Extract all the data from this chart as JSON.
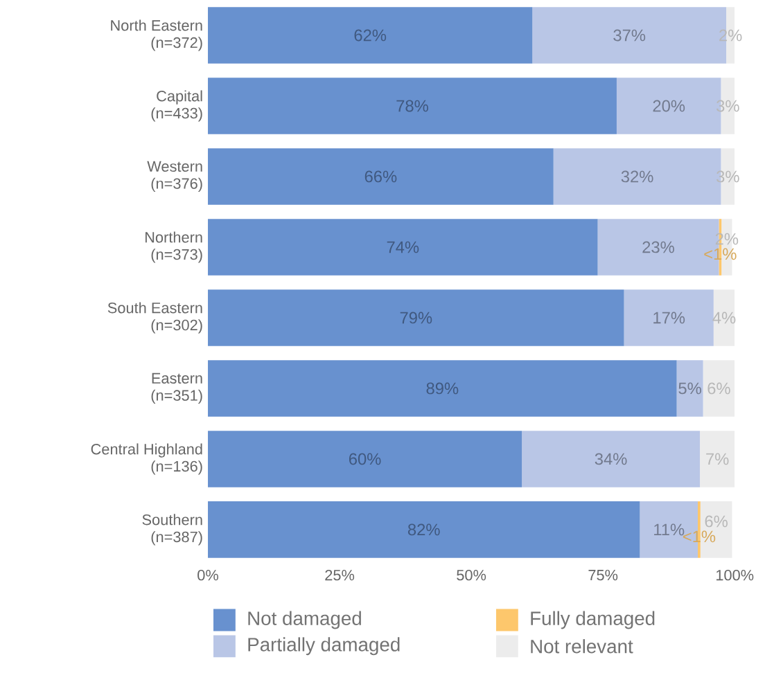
{
  "chart_data": {
    "type": "bar",
    "orientation": "horizontal",
    "stacked": true,
    "categories": [
      "North Eastern\n(n=372)",
      "Capital\n(n=433)",
      "Western\n(n=376)",
      "Northern\n(n=373)",
      "South Eastern\n(n=302)",
      "Eastern\n(n=351)",
      "Central Highland\n(n=136)",
      "Southern\n(n=387)"
    ],
    "series": [
      {
        "name": "Not damaged",
        "color": "#6891cf",
        "values": [
          61.6,
          77.6,
          65.6,
          74,
          79,
          89,
          59.6,
          82
        ],
        "value_labels": [
          "62%",
          "78%",
          "66%",
          "74%",
          "79%",
          "89%",
          "60%",
          "82%"
        ]
      },
      {
        "name": "Partially damaged",
        "color": "#b9c6e6",
        "values": [
          36.8,
          19.8,
          31.8,
          23,
          17,
          5,
          33.8,
          11
        ],
        "value_labels": [
          "37%",
          "20%",
          "32%",
          "23%",
          "17%",
          "5%",
          "34%",
          "11%"
        ]
      },
      {
        "name": "Fully damaged",
        "color": "#fdc76c",
        "values": [
          null,
          null,
          null,
          0.5,
          null,
          null,
          null,
          0.5
        ],
        "value_labels": [
          null,
          null,
          null,
          "<1%",
          null,
          null,
          null,
          "<1%"
        ]
      },
      {
        "name": "Not relevant",
        "color": "#ececec",
        "values": [
          1.6,
          2.6,
          2.6,
          2,
          4,
          6,
          6.6,
          6
        ],
        "value_labels": [
          "2%",
          "3%",
          "3%",
          "2%",
          "4%",
          "6%",
          "7%",
          "6%"
        ]
      }
    ],
    "xlim": [
      0,
      100
    ],
    "xticks": [
      {
        "value": 0,
        "label": "0%"
      },
      {
        "value": 25,
        "label": "25%"
      },
      {
        "value": 50,
        "label": "50%"
      },
      {
        "value": 75,
        "label": "75%"
      },
      {
        "value": 100,
        "label": "100%"
      }
    ],
    "legend": "bottom",
    "grid": false
  }
}
